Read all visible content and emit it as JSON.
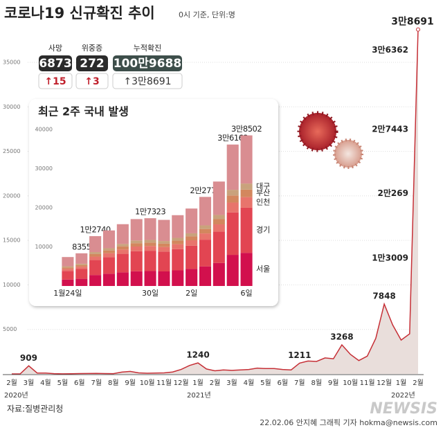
{
  "header": {
    "title": "코로나19 신규확진 추이",
    "subtitle": "0시 기준, 단위:명"
  },
  "stats": [
    {
      "label": "사망",
      "value": "6873",
      "change": "↑15"
    },
    {
      "label": "위중증",
      "value": "272",
      "change": "↑3"
    },
    {
      "label": "누적확진",
      "value": "100만9688",
      "change": "↑3만8691"
    }
  ],
  "chart_data": [
    {
      "type": "area",
      "categories": [
        "2월",
        null,
        "3월",
        null,
        "4월",
        null,
        "5월",
        null,
        "6월",
        null,
        "7월",
        null,
        "8월",
        null,
        "9월",
        null,
        "10월",
        null,
        "11월",
        null,
        "12월",
        null,
        "1월",
        null,
        "2월",
        null,
        "3월",
        null,
        "4월",
        null,
        "5월",
        null,
        "6월",
        null,
        "7월",
        null,
        "8월",
        null,
        "9월",
        null,
        "10월",
        null,
        "11월",
        null,
        "12월",
        null,
        "1월",
        null,
        "2월"
      ],
      "values": [
        0,
        10,
        909,
        100,
        90,
        30,
        10,
        25,
        40,
        45,
        55,
        40,
        30,
        200,
        280,
        120,
        80,
        90,
        120,
        220,
        500,
        950,
        1240,
        550,
        350,
        450,
        400,
        450,
        500,
        650,
        600,
        600,
        500,
        450,
        1211,
        1450,
        1400,
        1800,
        1700,
        3268,
        2200,
        1500,
        2000,
        4000,
        7848,
        5500,
        3800,
        4500,
        38691
      ],
      "value_labels": [
        null,
        null,
        "909",
        null,
        null,
        null,
        null,
        null,
        null,
        null,
        null,
        null,
        null,
        null,
        null,
        null,
        null,
        null,
        null,
        null,
        null,
        null,
        "1240",
        null,
        null,
        null,
        null,
        null,
        null,
        null,
        null,
        null,
        null,
        null,
        "1211",
        null,
        null,
        null,
        null,
        "3268",
        null,
        null,
        null,
        null,
        "7848",
        null,
        null,
        null,
        "3만8691"
      ],
      "annotations": [
        {
          "text": "1만3009",
          "value": 13009
        },
        {
          "text": "2만269",
          "value": 20269
        },
        {
          "text": "2만7443",
          "value": 27443
        },
        {
          "text": "3만6362",
          "value": 36362
        }
      ],
      "color": "#c62f36",
      "area_color": "#e9dedb",
      "ylim": [
        0,
        39000
      ],
      "yticks": [
        5000,
        10000,
        15000,
        20000,
        25000,
        30000,
        35000
      ],
      "grid": true
    },
    {
      "type": "stacked-bar",
      "title": "최근 2주 국내 발생",
      "categories": [
        "1월24일",
        null,
        null,
        null,
        null,
        null,
        "30일",
        null,
        null,
        "2일",
        null,
        null,
        null,
        "6일"
      ],
      "series": [
        {
          "name": "서울",
          "color": "#d2104d",
          "values": [
            1628,
            1838,
            2803,
            3124,
            3476,
            3762,
            3811,
            3718,
            3982,
            4356,
            5010,
            5874,
            7956,
            8470
          ]
        },
        {
          "name": "경기",
          "color": "#e24552",
          "values": [
            2220,
            2507,
            3822,
            4260,
            4740,
            5130,
            5197,
            5070,
            5430,
            5940,
            6832,
            8010,
            10849,
            11551
          ]
        },
        {
          "name": "인천",
          "color": "#e8746c",
          "values": [
            518,
            585,
            892,
            994,
            1106,
            1197,
            1213,
            1183,
            1267,
            1386,
            1594,
            1869,
            2531,
            2695
          ]
        },
        {
          "name": "부산",
          "color": "#d3875e",
          "values": [
            370,
            418,
            637,
            710,
            790,
            855,
            866,
            845,
            905,
            990,
            1139,
            1335,
            1808,
            1925
          ]
        },
        {
          "name": "대구",
          "color": "#c9a27c",
          "values": [
            296,
            334,
            510,
            568,
            632,
            684,
            693,
            676,
            724,
            792,
            911,
            1068,
            1446,
            1540
          ]
        },
        {
          "color": "#d98d91",
          "values": [
            2368,
            2673,
            4076,
            4544,
            5056,
            5472,
            5543,
            5408,
            5792,
            6336,
            7287,
            8544,
            11572,
            12321
          ]
        }
      ],
      "total_labels": [
        null,
        "8355",
        "1만2740",
        null,
        null,
        null,
        "1만7323",
        null,
        null,
        null,
        "2만2773",
        null,
        "3만6162",
        "3만8502"
      ],
      "ylim": [
        0,
        41000
      ],
      "yticks": [
        10000,
        20000,
        30000,
        40000
      ],
      "grid": false
    }
  ],
  "year_labels": [
    "2020년",
    "2021년",
    "2022년"
  ],
  "footer": {
    "source": "자료:질병관리청",
    "credit": "22.02.06 안지혜 그래픽 기자 hokma@newsis.com",
    "watermark": "NEWSIS"
  }
}
